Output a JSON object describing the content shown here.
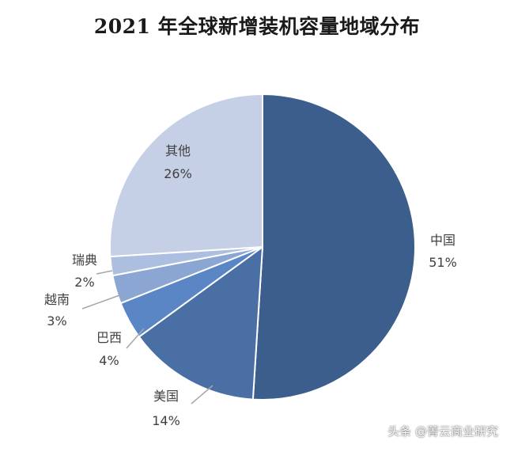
{
  "chart_data": {
    "type": "pie",
    "title": "2021 年全球新增装机容量地域分布",
    "slices": [
      {
        "label": "中国",
        "value": 51,
        "value_label": "51%",
        "color": "#3b5e8c"
      },
      {
        "label": "美国",
        "value": 14,
        "value_label": "14%",
        "color": "#4a6fa5"
      },
      {
        "label": "巴西",
        "value": 4,
        "value_label": "4%",
        "color": "#5a86c6"
      },
      {
        "label": "越南",
        "value": 3,
        "value_label": "3%",
        "color": "#8ba6d3"
      },
      {
        "label": "瑞典",
        "value": 2,
        "value_label": "2%",
        "color": "#adbfe0"
      },
      {
        "label": "其他",
        "value": 26,
        "value_label": "26%",
        "color": "#c5d0e6"
      }
    ],
    "start": "12 o'clock",
    "direction": "clockwise",
    "legend": "none"
  },
  "watermark": "头条 @菁云商业研究"
}
